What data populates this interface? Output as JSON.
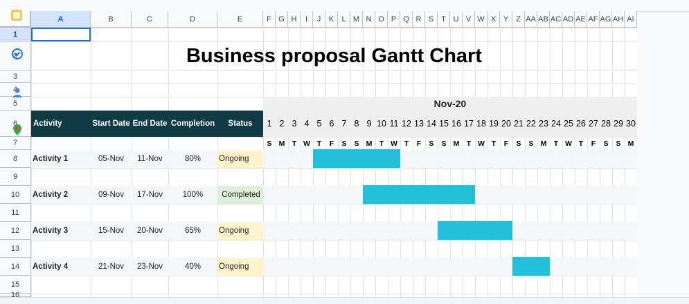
{
  "sheet": {
    "title": "Business proposal Gantt Chart",
    "month_label": "Nov-20",
    "columns": [
      "A",
      "B",
      "C",
      "D",
      "E",
      "F",
      "G",
      "H",
      "I",
      "J",
      "K",
      "L",
      "M",
      "N",
      "O",
      "P",
      "Q",
      "R",
      "S",
      "T",
      "U",
      "V",
      "W",
      "X",
      "Y",
      "Z",
      "AA",
      "AB",
      "AC",
      "AD",
      "AE",
      "AF",
      "AG",
      "AH",
      "AI"
    ],
    "rows": [
      "1",
      "2",
      "3",
      "4",
      "5",
      "6",
      "7",
      "8",
      "9",
      "10",
      "11",
      "12",
      "13",
      "14",
      "15",
      "16"
    ],
    "headers": {
      "activity": "Activity",
      "start": "Start Date",
      "end": "End Date",
      "completion": "Completion",
      "status": "Status"
    },
    "days": [
      "1",
      "2",
      "3",
      "4",
      "5",
      "6",
      "7",
      "8",
      "9",
      "10",
      "11",
      "12",
      "13",
      "14",
      "15",
      "16",
      "17",
      "18",
      "19",
      "20",
      "21",
      "22",
      "23",
      "24",
      "25",
      "26",
      "27",
      "28",
      "29",
      "30"
    ],
    "weekdays": [
      "S",
      "M",
      "T",
      "W",
      "T",
      "F",
      "S",
      "S",
      "M",
      "T",
      "W",
      "T",
      "F",
      "S",
      "S",
      "M",
      "T",
      "W",
      "T",
      "F",
      "S",
      "S",
      "M",
      "T",
      "W",
      "T",
      "F",
      "S",
      "S",
      "M"
    ],
    "activities": [
      {
        "name": "Activity 1",
        "start": "05-Nov",
        "end": "11-Nov",
        "completion": "80%",
        "status": "Ongoing",
        "start_day": 5,
        "end_day": 11
      },
      {
        "name": "Activity 2",
        "start": "09-Nov",
        "end": "17-Nov",
        "completion": "100%",
        "status": "Completed",
        "start_day": 9,
        "end_day": 17
      },
      {
        "name": "Activity 3",
        "start": "15-Nov",
        "end": "20-Nov",
        "completion": "65%",
        "status": "Ongoing",
        "start_day": 15,
        "end_day": 20
      },
      {
        "name": "Activity 4",
        "start": "21-Nov",
        "end": "23-Nov",
        "completion": "40%",
        "status": "Ongoing",
        "start_day": 21,
        "end_day": 23
      }
    ],
    "colors": {
      "header_bg": "#0f3b44",
      "bar": "#23bfd8",
      "ongoing": "#fff3cc",
      "completed": "#dcefd7"
    }
  }
}
